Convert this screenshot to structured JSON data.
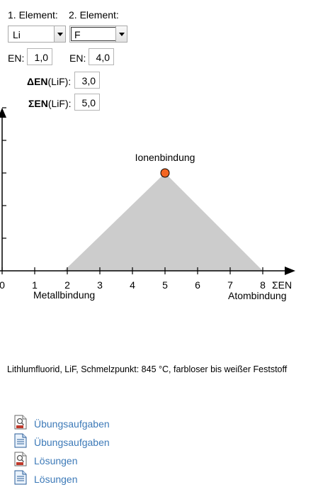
{
  "controls": {
    "element1_label": "1. Element:",
    "element2_label": "2. Element:",
    "element1_value": "Li",
    "element2_value": "F",
    "en_label1": "EN:",
    "en_value1": "1,0",
    "en_label2": "EN:",
    "en_value2": "4,0",
    "delta_en_label": "ΔEN",
    "delta_en_suffix": "(LiF):",
    "delta_en_value": "3,0",
    "sum_en_label": "ΣEN",
    "sum_en_suffix": "(LiF):",
    "sum_en_value": "5,0"
  },
  "chart_data": {
    "type": "scatter",
    "x_axis_label": "ΣEN",
    "x_ticks": [
      "0",
      "1",
      "2",
      "3",
      "4",
      "5",
      "6",
      "7",
      "8"
    ],
    "xlim": [
      0,
      8.5
    ],
    "ylim": [
      0,
      3.5
    ],
    "y_tick_count": 5,
    "region_polygon": [
      [
        1.9,
        0
      ],
      [
        5,
        3
      ],
      [
        8,
        0
      ]
    ],
    "region_color": "#cccccc",
    "point": {
      "x": 5.0,
      "y": 3.0,
      "label": "Ionenbindung",
      "color": "#f26522"
    },
    "corner_labels": {
      "left": "Metallbindung",
      "right": "Atombindung"
    }
  },
  "info_text": "Lithlumfluorid, LiF,  Schmelzpunkt: 845 °C, farbloser bis weißer Feststoff",
  "links": [
    {
      "label": "Übungsaufgaben",
      "icon": "pdf-icon"
    },
    {
      "label": "Übungsaufgaben",
      "icon": "document-icon"
    },
    {
      "label": "Lösungen",
      "icon": "pdf-icon"
    },
    {
      "label": "Lösungen",
      "icon": "document-icon"
    }
  ]
}
